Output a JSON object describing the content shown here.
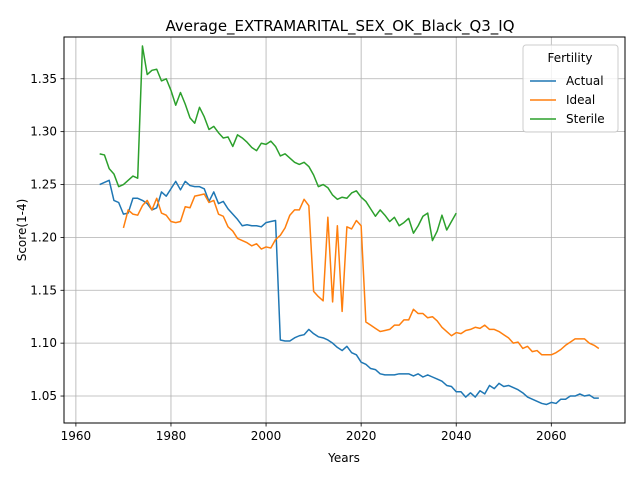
{
  "chart_data": {
    "type": "line",
    "title": "Average_EXTRAMARITAL_SEX_OK_Black_Q3_IQ",
    "xlabel": "Years",
    "ylabel": "Score(1-4)",
    "xlim": [
      1957.5,
      2075.5
    ],
    "ylim": [
      1.0245,
      1.3895
    ],
    "xticks": [
      1960,
      1980,
      2000,
      2020,
      2040,
      2060
    ],
    "yticks": [
      1.05,
      1.1,
      1.15,
      1.2,
      1.25,
      1.3,
      1.35
    ],
    "ytick_labels": [
      "1.05",
      "1.10",
      "1.15",
      "1.20",
      "1.25",
      "1.30",
      "1.35"
    ],
    "grid": true,
    "legend": {
      "title": "Fertility",
      "position": "top-right"
    },
    "series": [
      {
        "name": "Actual",
        "color": "#1f77b4",
        "points": [
          [
            1965,
            1.25
          ],
          [
            1966,
            1.252
          ],
          [
            1967,
            1.254
          ],
          [
            1968,
            1.235
          ],
          [
            1969,
            1.233
          ],
          [
            1970,
            1.222
          ],
          [
            1971,
            1.223
          ],
          [
            1972,
            1.237
          ],
          [
            1973,
            1.237
          ],
          [
            1974,
            1.235
          ],
          [
            1975,
            1.232
          ],
          [
            1976,
            1.226
          ],
          [
            1977,
            1.228
          ],
          [
            1978,
            1.243
          ],
          [
            1979,
            1.239
          ],
          [
            1980,
            1.246
          ],
          [
            1981,
            1.253
          ],
          [
            1982,
            1.245
          ],
          [
            1983,
            1.253
          ],
          [
            1984,
            1.249
          ],
          [
            1985,
            1.248
          ],
          [
            1986,
            1.248
          ],
          [
            1987,
            1.246
          ],
          [
            1988,
            1.234
          ],
          [
            1989,
            1.243
          ],
          [
            1990,
            1.232
          ],
          [
            1991,
            1.234
          ],
          [
            1992,
            1.227
          ],
          [
            1993,
            1.222
          ],
          [
            1994,
            1.217
          ],
          [
            1995,
            1.211
          ],
          [
            1996,
            1.212
          ],
          [
            1997,
            1.211
          ],
          [
            1998,
            1.211
          ],
          [
            1999,
            1.21
          ],
          [
            2000,
            1.214
          ],
          [
            2001,
            1.215
          ],
          [
            2002,
            1.216
          ],
          [
            2003,
            1.103
          ],
          [
            2004,
            1.102
          ],
          [
            2005,
            1.102
          ],
          [
            2006,
            1.105
          ],
          [
            2007,
            1.107
          ],
          [
            2008,
            1.108
          ],
          [
            2009,
            1.113
          ],
          [
            2010,
            1.109
          ],
          [
            2011,
            1.106
          ],
          [
            2012,
            1.105
          ],
          [
            2013,
            1.103
          ],
          [
            2014,
            1.1
          ],
          [
            2015,
            1.096
          ],
          [
            2016,
            1.093
          ],
          [
            2017,
            1.097
          ],
          [
            2018,
            1.091
          ],
          [
            2019,
            1.089
          ],
          [
            2020,
            1.082
          ],
          [
            2021,
            1.08
          ],
          [
            2022,
            1.076
          ],
          [
            2023,
            1.075
          ],
          [
            2024,
            1.071
          ],
          [
            2025,
            1.07
          ],
          [
            2026,
            1.07
          ],
          [
            2027,
            1.07
          ],
          [
            2028,
            1.071
          ],
          [
            2029,
            1.071
          ],
          [
            2030,
            1.071
          ],
          [
            2031,
            1.069
          ],
          [
            2032,
            1.071
          ],
          [
            2033,
            1.068
          ],
          [
            2034,
            1.07
          ],
          [
            2035,
            1.068
          ],
          [
            2036,
            1.066
          ],
          [
            2037,
            1.064
          ],
          [
            2038,
            1.06
          ],
          [
            2039,
            1.059
          ],
          [
            2040,
            1.054
          ],
          [
            2041,
            1.054
          ],
          [
            2042,
            1.049
          ],
          [
            2043,
            1.053
          ],
          [
            2044,
            1.049
          ],
          [
            2045,
            1.055
          ],
          [
            2046,
            1.052
          ],
          [
            2047,
            1.06
          ],
          [
            2048,
            1.057
          ],
          [
            2049,
            1.062
          ],
          [
            2050,
            1.059
          ],
          [
            2051,
            1.06
          ],
          [
            2052,
            1.058
          ],
          [
            2053,
            1.056
          ],
          [
            2054,
            1.053
          ],
          [
            2055,
            1.049
          ],
          [
            2056,
            1.047
          ],
          [
            2057,
            1.045
          ],
          [
            2058,
            1.043
          ],
          [
            2059,
            1.042
          ],
          [
            2060,
            1.044
          ],
          [
            2061,
            1.043
          ],
          [
            2062,
            1.047
          ],
          [
            2063,
            1.047
          ],
          [
            2064,
            1.05
          ],
          [
            2065,
            1.05
          ],
          [
            2066,
            1.052
          ],
          [
            2067,
            1.05
          ],
          [
            2068,
            1.051
          ],
          [
            2069,
            1.048
          ],
          [
            2070,
            1.048
          ]
        ]
      },
      {
        "name": "Ideal",
        "color": "#ff7f0e",
        "points": [
          [
            1970,
            1.209
          ],
          [
            1971,
            1.226
          ],
          [
            1972,
            1.222
          ],
          [
            1973,
            1.221
          ],
          [
            1974,
            1.23
          ],
          [
            1975,
            1.235
          ],
          [
            1976,
            1.226
          ],
          [
            1977,
            1.237
          ],
          [
            1978,
            1.223
          ],
          [
            1979,
            1.221
          ],
          [
            1980,
            1.215
          ],
          [
            1981,
            1.214
          ],
          [
            1982,
            1.215
          ],
          [
            1983,
            1.229
          ],
          [
            1984,
            1.228
          ],
          [
            1985,
            1.239
          ],
          [
            1986,
            1.24
          ],
          [
            1987,
            1.241
          ],
          [
            1988,
            1.233
          ],
          [
            1989,
            1.235
          ],
          [
            1990,
            1.222
          ],
          [
            1991,
            1.22
          ],
          [
            1992,
            1.21
          ],
          [
            1993,
            1.206
          ],
          [
            1994,
            1.199
          ],
          [
            1995,
            1.197
          ],
          [
            1996,
            1.195
          ],
          [
            1997,
            1.192
          ],
          [
            1998,
            1.194
          ],
          [
            1999,
            1.189
          ],
          [
            2000,
            1.191
          ],
          [
            2001,
            1.19
          ],
          [
            2002,
            1.198
          ],
          [
            2003,
            1.202
          ],
          [
            2004,
            1.209
          ],
          [
            2005,
            1.221
          ],
          [
            2006,
            1.226
          ],
          [
            2007,
            1.226
          ],
          [
            2008,
            1.236
          ],
          [
            2009,
            1.23
          ],
          [
            2010,
            1.149
          ],
          [
            2011,
            1.144
          ],
          [
            2012,
            1.14
          ],
          [
            2013,
            1.219
          ],
          [
            2014,
            1.139
          ],
          [
            2015,
            1.211
          ],
          [
            2016,
            1.13
          ],
          [
            2017,
            1.21
          ],
          [
            2018,
            1.208
          ],
          [
            2019,
            1.216
          ],
          [
            2020,
            1.211
          ],
          [
            2021,
            1.12
          ],
          [
            2022,
            1.117
          ],
          [
            2023,
            1.114
          ],
          [
            2024,
            1.111
          ],
          [
            2025,
            1.112
          ],
          [
            2026,
            1.113
          ],
          [
            2027,
            1.117
          ],
          [
            2028,
            1.117
          ],
          [
            2029,
            1.122
          ],
          [
            2030,
            1.122
          ],
          [
            2031,
            1.132
          ],
          [
            2032,
            1.128
          ],
          [
            2033,
            1.128
          ],
          [
            2034,
            1.124
          ],
          [
            2035,
            1.125
          ],
          [
            2036,
            1.121
          ],
          [
            2037,
            1.115
          ],
          [
            2038,
            1.111
          ],
          [
            2039,
            1.107
          ],
          [
            2040,
            1.11
          ],
          [
            2041,
            1.109
          ],
          [
            2042,
            1.112
          ],
          [
            2043,
            1.113
          ],
          [
            2044,
            1.115
          ],
          [
            2045,
            1.114
          ],
          [
            2046,
            1.117
          ],
          [
            2047,
            1.113
          ],
          [
            2048,
            1.113
          ],
          [
            2049,
            1.111
          ],
          [
            2050,
            1.108
          ],
          [
            2051,
            1.105
          ],
          [
            2052,
            1.1
          ],
          [
            2053,
            1.101
          ],
          [
            2054,
            1.095
          ],
          [
            2055,
            1.097
          ],
          [
            2056,
            1.092
          ],
          [
            2057,
            1.093
          ],
          [
            2058,
            1.089
          ],
          [
            2059,
            1.089
          ],
          [
            2060,
            1.089
          ],
          [
            2061,
            1.091
          ],
          [
            2062,
            1.094
          ],
          [
            2063,
            1.098
          ],
          [
            2064,
            1.101
          ],
          [
            2065,
            1.104
          ],
          [
            2066,
            1.104
          ],
          [
            2067,
            1.104
          ],
          [
            2068,
            1.1
          ],
          [
            2069,
            1.098
          ],
          [
            2070,
            1.095
          ]
        ]
      },
      {
        "name": "Sterile",
        "color": "#2ca02c",
        "points": [
          [
            1965,
            1.279
          ],
          [
            1966,
            1.278
          ],
          [
            1967,
            1.265
          ],
          [
            1968,
            1.26
          ],
          [
            1969,
            1.248
          ],
          [
            1970,
            1.25
          ],
          [
            1971,
            1.254
          ],
          [
            1972,
            1.258
          ],
          [
            1973,
            1.256
          ],
          [
            1974,
            1.381
          ],
          [
            1975,
            1.354
          ],
          [
            1976,
            1.358
          ],
          [
            1977,
            1.359
          ],
          [
            1978,
            1.348
          ],
          [
            1979,
            1.35
          ],
          [
            1980,
            1.339
          ],
          [
            1981,
            1.325
          ],
          [
            1982,
            1.337
          ],
          [
            1983,
            1.326
          ],
          [
            1984,
            1.313
          ],
          [
            1985,
            1.308
          ],
          [
            1986,
            1.323
          ],
          [
            1987,
            1.314
          ],
          [
            1988,
            1.302
          ],
          [
            1989,
            1.305
          ],
          [
            1990,
            1.299
          ],
          [
            1991,
            1.294
          ],
          [
            1992,
            1.295
          ],
          [
            1993,
            1.286
          ],
          [
            1994,
            1.297
          ],
          [
            1995,
            1.294
          ],
          [
            1996,
            1.29
          ],
          [
            1997,
            1.285
          ],
          [
            1998,
            1.282
          ],
          [
            1999,
            1.289
          ],
          [
            2000,
            1.288
          ],
          [
            2001,
            1.291
          ],
          [
            2002,
            1.286
          ],
          [
            2003,
            1.277
          ],
          [
            2004,
            1.279
          ],
          [
            2005,
            1.275
          ],
          [
            2006,
            1.271
          ],
          [
            2007,
            1.269
          ],
          [
            2008,
            1.271
          ],
          [
            2009,
            1.267
          ],
          [
            2010,
            1.259
          ],
          [
            2011,
            1.248
          ],
          [
            2012,
            1.25
          ],
          [
            2013,
            1.247
          ],
          [
            2014,
            1.24
          ],
          [
            2015,
            1.236
          ],
          [
            2016,
            1.238
          ],
          [
            2017,
            1.237
          ],
          [
            2018,
            1.242
          ],
          [
            2019,
            1.244
          ],
          [
            2020,
            1.238
          ],
          [
            2021,
            1.234
          ],
          [
            2022,
            1.227
          ],
          [
            2023,
            1.22
          ],
          [
            2024,
            1.226
          ],
          [
            2025,
            1.221
          ],
          [
            2026,
            1.215
          ],
          [
            2027,
            1.219
          ],
          [
            2028,
            1.211
          ],
          [
            2029,
            1.214
          ],
          [
            2030,
            1.218
          ],
          [
            2031,
            1.204
          ],
          [
            2032,
            1.211
          ],
          [
            2033,
            1.22
          ],
          [
            2034,
            1.223
          ],
          [
            2035,
            1.197
          ],
          [
            2036,
            1.206
          ],
          [
            2037,
            1.221
          ],
          [
            2038,
            1.207
          ],
          [
            2039,
            1.215
          ],
          [
            2040,
            1.223
          ]
        ]
      }
    ]
  }
}
